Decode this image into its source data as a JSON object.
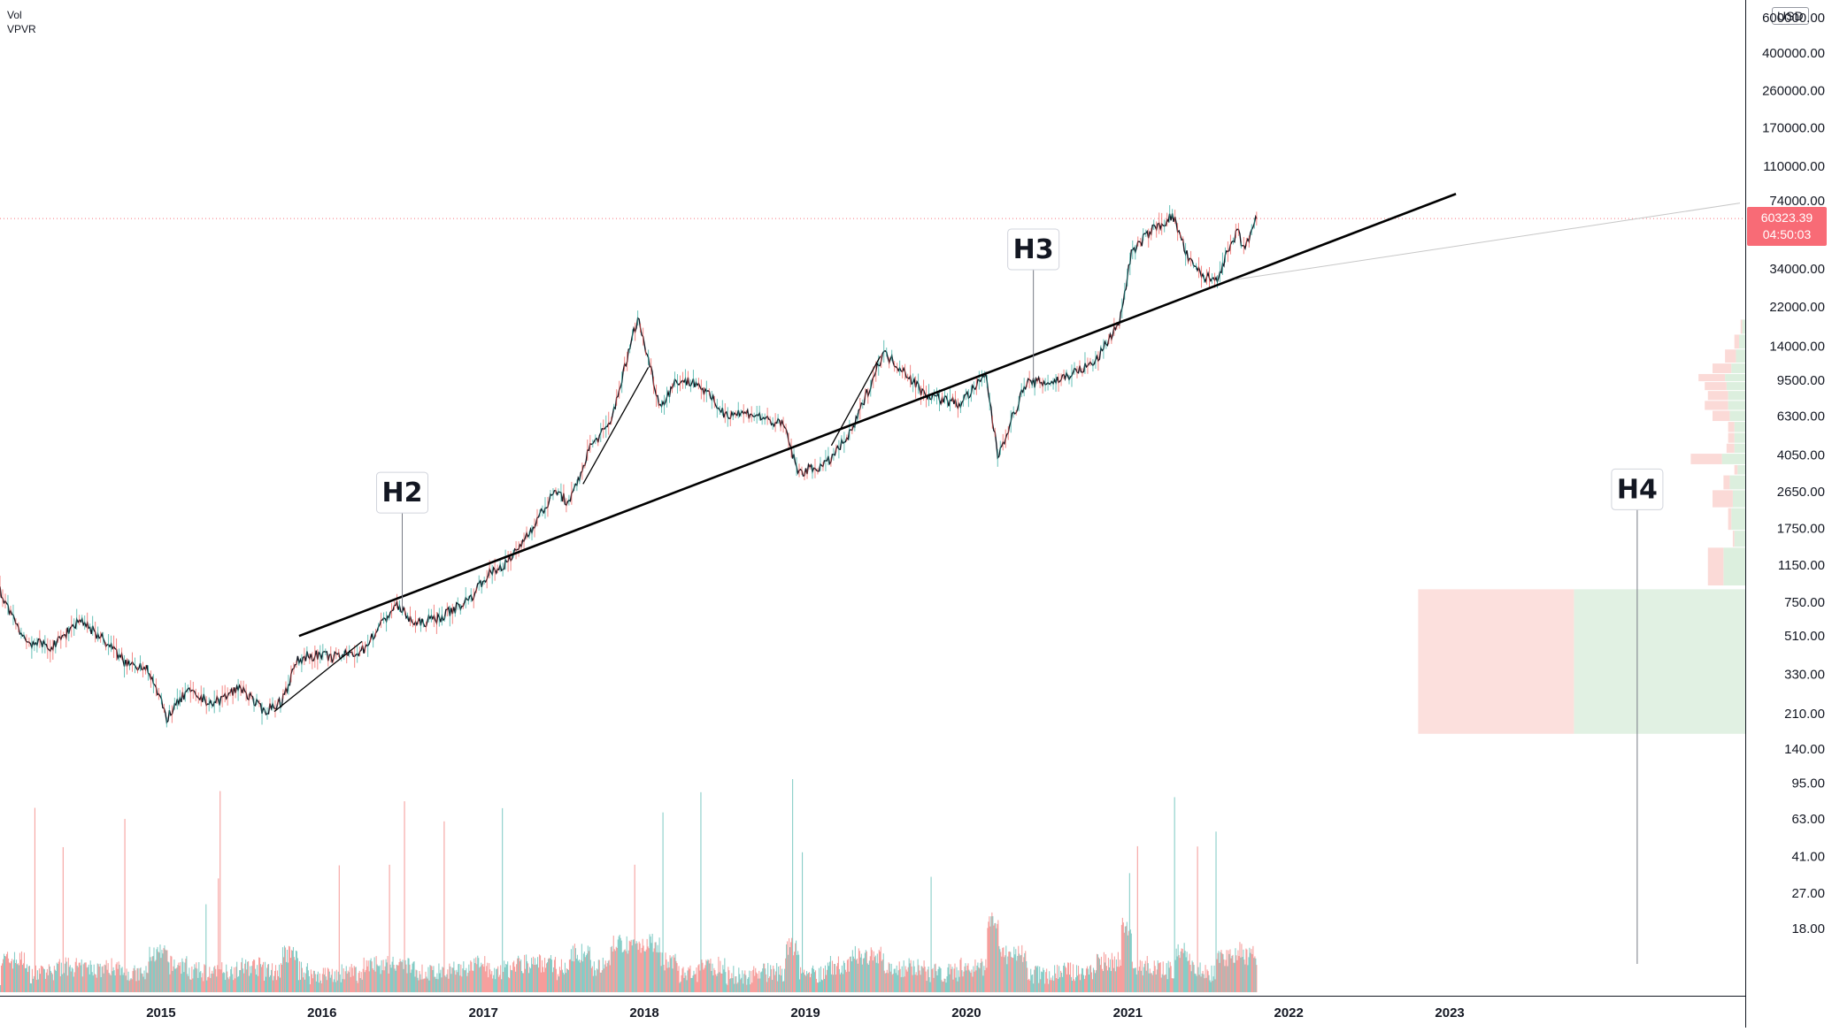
{
  "chart_data": {
    "type": "line",
    "title": "",
    "xlabel": "",
    "ylabel": "",
    "scale": "log",
    "currency": "USD",
    "ylim": [
      12,
      600000
    ],
    "xlim": [
      "2014-01-01",
      "2024-11-01"
    ],
    "legend_tags": [
      "Vol",
      "VPVR"
    ],
    "x_tick_labels": [
      "2015",
      "2016",
      "2017",
      "2018",
      "2019",
      "2020",
      "2021",
      "2022",
      "2023"
    ],
    "x_tick_dates": [
      "2015-01-01",
      "2016-01-01",
      "2017-01-01",
      "2018-01-01",
      "2019-01-01",
      "2020-01-01",
      "2021-01-01",
      "2022-01-01",
      "2023-01-01"
    ],
    "y_tick_labels": [
      "600000.00",
      "400000.00",
      "260000.00",
      "170000.00",
      "110000.00",
      "74000.00",
      "34000.00",
      "22000.00",
      "14000.00",
      "9500.00",
      "6300.00",
      "4050.00",
      "2650.00",
      "1750.00",
      "1150.00",
      "750.00",
      "510.00",
      "330.00",
      "210.00",
      "140.00",
      "95.00",
      "63.00",
      "41.00",
      "27.00",
      "18.00"
    ],
    "y_tick_values": [
      600000,
      400000,
      260000,
      170000,
      110000,
      74000,
      34000,
      22000,
      14000,
      9500,
      6300,
      4050,
      2650,
      1750,
      1150,
      750,
      510,
      330,
      210,
      140,
      95,
      63,
      41,
      27,
      18
    ],
    "last_price": "60323.39",
    "countdown": "04:50:03",
    "series": [
      {
        "kind": "price",
        "x": [
          "2014-01-01",
          "2014-03-01",
          "2014-05-01",
          "2014-07-01",
          "2014-09-01",
          "2014-10-15",
          "2014-12-01",
          "2015-01-14",
          "2015-03-01",
          "2015-05-01",
          "2015-07-01",
          "2015-08-20",
          "2015-10-01",
          "2015-11-05",
          "2015-12-01",
          "2016-02-01",
          "2016-04-01",
          "2016-06-16",
          "2016-08-01",
          "2016-10-01",
          "2016-12-01",
          "2017-01-05",
          "2017-03-01",
          "2017-05-01",
          "2017-06-15",
          "2017-07-15",
          "2017-09-01",
          "2017-10-15",
          "2017-12-17",
          "2018-02-06",
          "2018-03-15",
          "2018-05-01",
          "2018-07-01",
          "2018-09-01",
          "2018-11-15",
          "2018-12-15",
          "2019-02-15",
          "2019-04-15",
          "2019-06-26",
          "2019-08-15",
          "2019-09-25",
          "2019-12-15",
          "2020-02-15",
          "2020-03-12",
          "2020-05-15",
          "2020-07-15",
          "2020-09-15",
          "2020-10-20",
          "2020-12-15",
          "2021-01-08",
          "2021-02-20",
          "2021-04-14",
          "2021-05-20",
          "2021-06-22",
          "2021-07-20",
          "2021-09-07",
          "2021-09-21",
          "2021-10-20"
        ],
        "values": [
          850,
          480,
          450,
          620,
          470,
          370,
          360,
          200,
          270,
          235,
          285,
          215,
          240,
          380,
          410,
          400,
          430,
          730,
          580,
          640,
          780,
          1000,
          1200,
          1900,
          2700,
          2300,
          4500,
          5700,
          19500,
          7000,
          9500,
          9200,
          6500,
          6500,
          5600,
          3300,
          3600,
          5200,
          13000,
          10500,
          8200,
          7200,
          10000,
          4000,
          9200,
          9300,
          10700,
          11700,
          19000,
          40000,
          52000,
          62000,
          37000,
          31000,
          30000,
          52000,
          42000,
          60323
        ]
      }
    ],
    "trendlines": [
      {
        "from_x": "2015-11-10",
        "from_y": 510,
        "to_x": "2023-01-15",
        "to_y": 80000,
        "color": "#000000"
      },
      {
        "from_x": "2015-09-15",
        "from_y": 215,
        "to_x": "2016-04-01",
        "to_y": 480,
        "color": "#000000"
      },
      {
        "from_x": "2017-08-15",
        "from_y": 2900,
        "to_x": "2018-01-10",
        "to_y": 11000,
        "color": "#000000"
      },
      {
        "from_x": "2019-03-01",
        "from_y": 4500,
        "to_x": "2019-06-20",
        "to_y": 12500,
        "color": "#000000"
      },
      {
        "from_x": "2021-09-01",
        "from_y": 30000,
        "to_x": "2024-10-20",
        "to_y": 72000,
        "color": "#c7c7c7"
      }
    ],
    "annotations": [
      {
        "label": "H2",
        "x": "2016-07-01",
        "y_top": 2600,
        "y_bottom": 680
      },
      {
        "label": "H3",
        "x": "2020-06-01",
        "y_top": 42000,
        "y_bottom": 9500
      },
      {
        "label": "H4",
        "x": "2024-03-01",
        "y_top": 2700,
        "y_bottom": 12
      }
    ],
    "volume_profile": [
      {
        "price_lo": 16000,
        "price_hi": 19000,
        "sell": 2,
        "buy": 4
      },
      {
        "price_lo": 13500,
        "price_hi": 16000,
        "sell": 6,
        "buy": 8
      },
      {
        "price_lo": 11500,
        "price_hi": 13500,
        "sell": 14,
        "buy": 12
      },
      {
        "price_lo": 10200,
        "price_hi": 11500,
        "sell": 24,
        "buy": 18
      },
      {
        "price_lo": 9300,
        "price_hi": 10200,
        "sell": 34,
        "buy": 26
      },
      {
        "price_lo": 8400,
        "price_hi": 9300,
        "sell": 28,
        "buy": 24
      },
      {
        "price_lo": 7500,
        "price_hi": 8400,
        "sell": 26,
        "buy": 22
      },
      {
        "price_lo": 6700,
        "price_hi": 7500,
        "sell": 30,
        "buy": 22
      },
      {
        "price_lo": 5900,
        "price_hi": 6700,
        "sell": 22,
        "buy": 20
      },
      {
        "price_lo": 5200,
        "price_hi": 5900,
        "sell": 8,
        "buy": 14
      },
      {
        "price_lo": 4600,
        "price_hi": 5200,
        "sell": 8,
        "buy": 14
      },
      {
        "price_lo": 4100,
        "price_hi": 4600,
        "sell": 10,
        "buy": 14
      },
      {
        "price_lo": 3600,
        "price_hi": 4100,
        "sell": 40,
        "buy": 30
      },
      {
        "price_lo": 3200,
        "price_hi": 3600,
        "sell": 4,
        "buy": 10
      },
      {
        "price_lo": 2700,
        "price_hi": 3200,
        "sell": 8,
        "buy": 20
      },
      {
        "price_lo": 2200,
        "price_hi": 2700,
        "sell": 26,
        "buy": 16
      },
      {
        "price_lo": 1700,
        "price_hi": 2200,
        "sell": 4,
        "buy": 18
      },
      {
        "price_lo": 1400,
        "price_hi": 1700,
        "sell": 2,
        "buy": 14
      },
      {
        "price_lo": 900,
        "price_hi": 1400,
        "sell": 20,
        "buy": 28
      },
      {
        "price_lo": 165,
        "price_hi": 870,
        "sell": 200,
        "buy": 220
      }
    ],
    "colors": {
      "up": "#26a69a",
      "down": "#ef5350",
      "price": "#131722",
      "line": "#000000",
      "last_price": "#f7525f",
      "vp_sell": "#fbdad7",
      "vp_buy": "#dcefde",
      "vp_sell_strong": "#f7aaa5",
      "vp_buy_strong": "#a8d9b1"
    }
  }
}
